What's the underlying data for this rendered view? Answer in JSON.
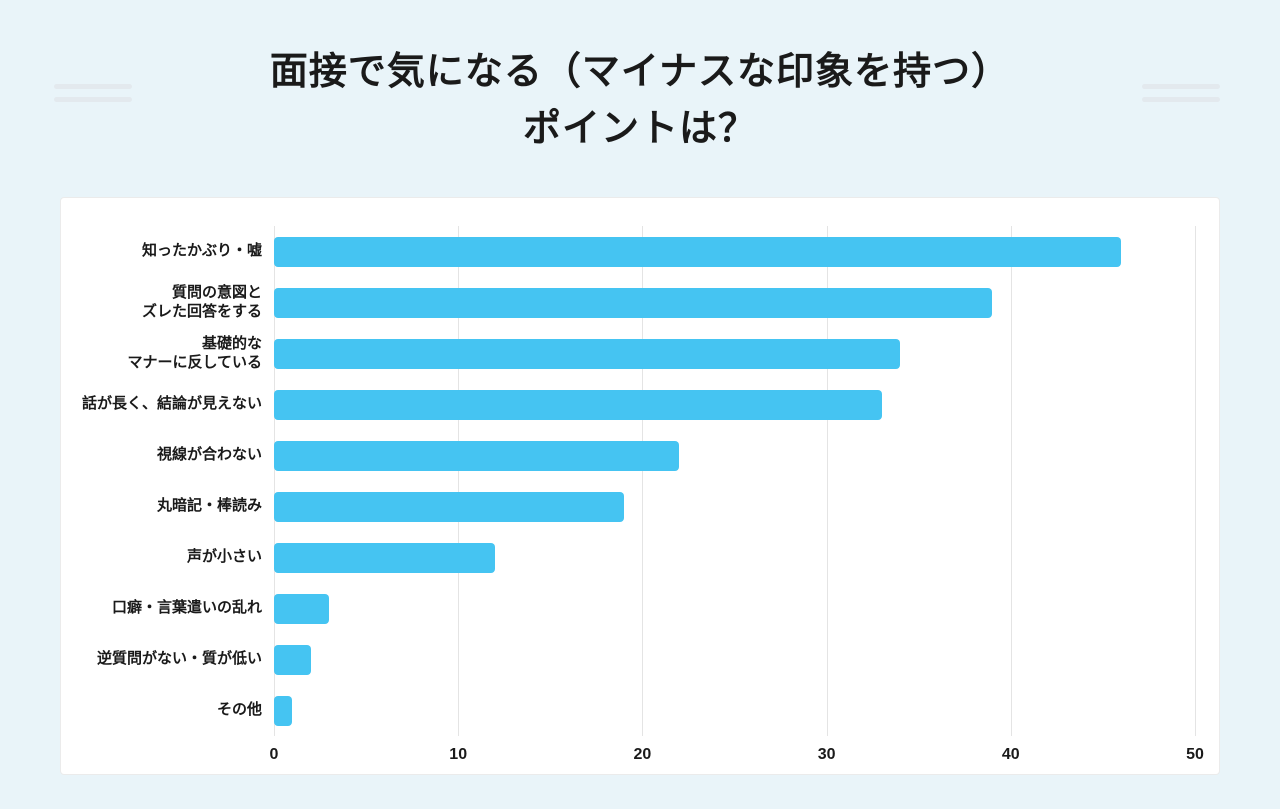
{
  "page": {
    "title_line1": "面接で気になる（マイナスな印象を持つ）",
    "title_line2": "ポイントは？"
  },
  "colors": {
    "background": "#e9f4f9",
    "card": "#ffffff",
    "bar": "#45c4f2",
    "grid": "#e4e4e4",
    "text": "#1a1a1a"
  },
  "chart_data": {
    "type": "bar",
    "orientation": "horizontal",
    "title": "面接で気になる（マイナスな印象を持つ）ポイントは？",
    "categories": [
      "知ったかぶり・嘘",
      "質問の意図と\nズレた回答をする",
      "基礎的な\nマナーに反している",
      "話が長く、結論が見えない",
      "視線が合わない",
      "丸暗記・棒読み",
      "声が小さい",
      "口癖・言葉遣いの乱れ",
      "逆質問がない・質が低い",
      "その他"
    ],
    "values": [
      46,
      39,
      34,
      33,
      22,
      19,
      12,
      3,
      2,
      1
    ],
    "xlim": [
      0,
      50
    ],
    "xticks": [
      0,
      10,
      20,
      30,
      40,
      50
    ],
    "xlabel": "",
    "ylabel": "",
    "grid": true,
    "legend": false
  }
}
